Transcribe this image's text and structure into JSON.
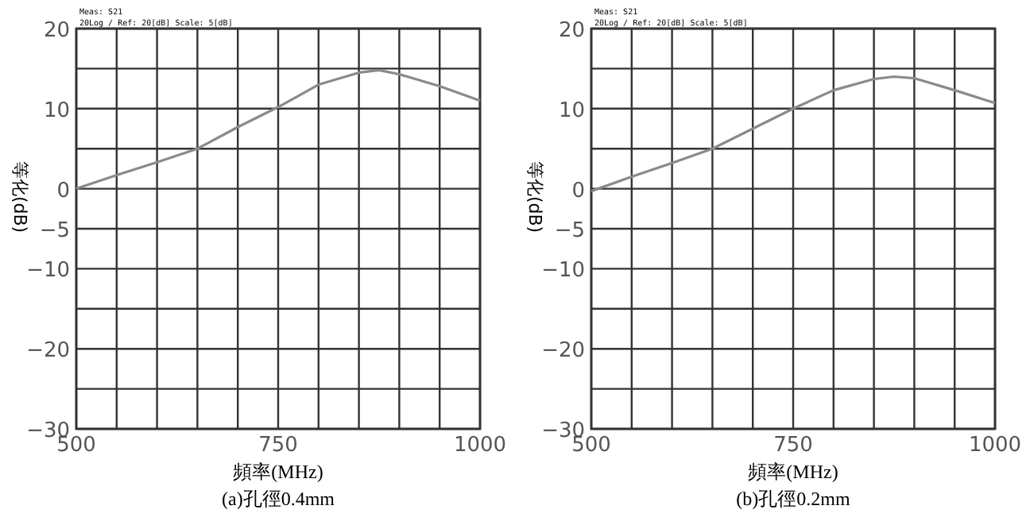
{
  "chart_data": [
    {
      "type": "line",
      "xlabel": "頻率(MHz)",
      "ylabel": "等化(dB)",
      "annotations": [
        "(a)孔徑0.4mm",
        "Meas: S21",
        "20Log / Ref: 20[dB]    Scale: 5[dB]"
      ],
      "x": [
        500,
        550,
        600,
        650,
        700,
        750,
        800,
        850,
        875,
        900,
        950,
        1000
      ],
      "series": [
        {
          "color": "#8a8a8a",
          "values": [
            0,
            1.7,
            3.3,
            5,
            7.7,
            10.2,
            13,
            14.5,
            14.8,
            14.3,
            12.8,
            11
          ]
        }
      ],
      "xlim": [
        500,
        1000
      ],
      "xticks": [
        500,
        {
          "value": 550,
          "label": null
        },
        {
          "value": 600,
          "label": null
        },
        {
          "value": 650,
          "label": null
        },
        {
          "value": 700,
          "label": null
        },
        750,
        {
          "value": 800,
          "label": null
        },
        {
          "value": 850,
          "label": null
        },
        {
          "value": 900,
          "label": null
        },
        {
          "value": 950,
          "label": null
        },
        1000
      ],
      "ylim": [
        -30,
        20
      ],
      "yticks": [
        -30,
        {
          "value": -25,
          "label": null
        },
        -20,
        {
          "value": -15,
          "label": null
        },
        -10,
        -5,
        0,
        {
          "value": 5,
          "label": null
        },
        10,
        {
          "value": 15,
          "label": null
        },
        20
      ],
      "grid": true,
      "marker": "none",
      "line_style": "solid"
    },
    {
      "type": "line",
      "xlabel": "頻率(MHz)",
      "ylabel": "等化(dB)",
      "annotations": [
        "(b)孔徑0.2mm",
        "Meas: S21",
        "20Log / Ref: 20[dB]    Scale: 5[dB]"
      ],
      "x": [
        500,
        550,
        600,
        650,
        700,
        750,
        800,
        850,
        875,
        900,
        950,
        1000
      ],
      "series": [
        {
          "color": "#8a8a8a",
          "values": [
            -0.3,
            1.5,
            3.2,
            5,
            7.5,
            10,
            12.3,
            13.7,
            14,
            13.8,
            12.3,
            10.7
          ]
        }
      ],
      "xlim": [
        500,
        1000
      ],
      "xticks": [
        500,
        {
          "value": 550,
          "label": null
        },
        {
          "value": 600,
          "label": null
        },
        {
          "value": 650,
          "label": null
        },
        {
          "value": 700,
          "label": null
        },
        750,
        {
          "value": 800,
          "label": null
        },
        {
          "value": 850,
          "label": null
        },
        {
          "value": 900,
          "label": null
        },
        {
          "value": 950,
          "label": null
        },
        1000
      ],
      "ylim": [
        -30,
        20
      ],
      "yticks": [
        -30,
        {
          "value": -25,
          "label": null
        },
        -20,
        {
          "value": -15,
          "label": null
        },
        -10,
        -5,
        0,
        {
          "value": 5,
          "label": null
        },
        10,
        {
          "value": 15,
          "label": null
        },
        20
      ],
      "grid": true,
      "marker": "none",
      "line_style": "solid"
    }
  ]
}
